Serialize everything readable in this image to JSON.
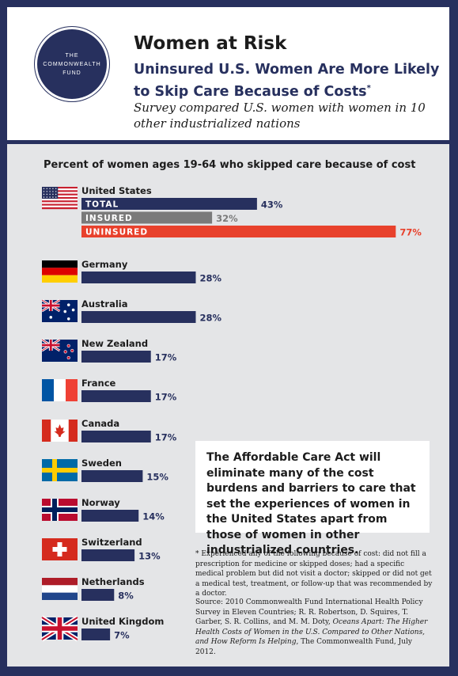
{
  "header": {
    "logo_line1": "THE",
    "logo_line2": "COMMONWEALTH",
    "logo_line3": "FUND",
    "title": "Women at Risk",
    "subtitle": "Uninsured U.S. Women Are More Likely to Skip Care Because of Costs",
    "subtitle_mark": "*",
    "subtitle2": "Survey compared U.S. women with women in 10 other industrialized nations"
  },
  "chart_data": {
    "type": "bar",
    "orientation": "horizontal",
    "title": "Percent of women ages 19-64 who skipped care because of cost",
    "value_format": "percent",
    "groups": [
      {
        "country": "United States",
        "flag": "us-flag",
        "bars": [
          {
            "label": "TOTAL",
            "value": 43,
            "color": "#27305e"
          },
          {
            "label": "INSURED",
            "value": 32,
            "color": "#7a7a7a"
          },
          {
            "label": "UNINSURED",
            "value": 77,
            "color": "#e8412c"
          }
        ]
      },
      {
        "country": "Germany",
        "flag": "germany-flag",
        "bars": [
          {
            "value": 28,
            "color": "#27305e"
          }
        ]
      },
      {
        "country": "Australia",
        "flag": "australia-flag",
        "bars": [
          {
            "value": 28,
            "color": "#27305e"
          }
        ]
      },
      {
        "country": "New Zealand",
        "flag": "new-zealand-flag",
        "bars": [
          {
            "value": 17,
            "color": "#27305e"
          }
        ]
      },
      {
        "country": "France",
        "flag": "france-flag",
        "bars": [
          {
            "value": 17,
            "color": "#27305e"
          }
        ]
      },
      {
        "country": "Canada",
        "flag": "canada-flag",
        "bars": [
          {
            "value": 17,
            "color": "#27305e"
          }
        ]
      },
      {
        "country": "Sweden",
        "flag": "sweden-flag",
        "bars": [
          {
            "value": 15,
            "color": "#27305e"
          }
        ]
      },
      {
        "country": "Norway",
        "flag": "norway-flag",
        "bars": [
          {
            "value": 14,
            "color": "#27305e"
          }
        ]
      },
      {
        "country": "Switzerland",
        "flag": "switzerland-flag",
        "bars": [
          {
            "value": 13,
            "color": "#27305e"
          }
        ]
      },
      {
        "country": "Netherlands",
        "flag": "netherlands-flag",
        "bars": [
          {
            "value": 8,
            "color": "#27305e"
          }
        ]
      },
      {
        "country": "United Kingdom",
        "flag": "united-kingdom-flag",
        "bars": [
          {
            "value": 7,
            "color": "#27305e"
          }
        ]
      }
    ]
  },
  "callout": "The Affordable Care Act will eliminate many of the cost burdens and barriers to care that set the experiences of women in the United States apart from those of women in other industrialized countries.",
  "footnote": "* Experienced any of the following because of cost: did not fill a prescription for medicine or skipped doses; had a specific medical problem but did not visit a doctor; skipped or did not get a medical test, treatment, or follow-up that was recommended by a doctor.",
  "source": {
    "part1": "Source: 2010 Commonwealth Fund International Health Policy Survey in Eleven Countries; R. R. Robertson, D. Squires, T. Garber, S. R. Collins, and M. M. Doty, ",
    "italic": "Oceans Apart: The Higher Health Costs of Women in the U.S. Compared to Other Nations, and How Reform Is Helping",
    "part2": ", The Commonwealth Fund, July 2012."
  },
  "colors": {
    "navy": "#27305e",
    "gray": "#7a7a7a",
    "red": "#e8412c",
    "background": "#e4e5e7"
  }
}
